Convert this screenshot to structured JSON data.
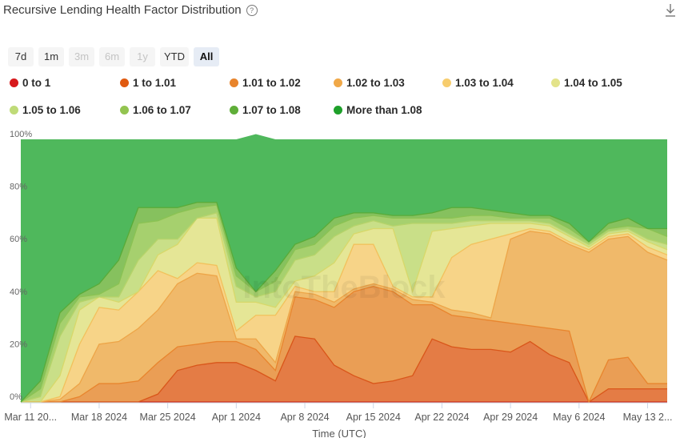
{
  "header": {
    "title": "Recursive Lending Health Factor Distribution",
    "help_icon": "question-circle-icon",
    "download_icon": "download-icon"
  },
  "ranges": [
    {
      "label": "7d",
      "state": "enabled"
    },
    {
      "label": "1m",
      "state": "enabled"
    },
    {
      "label": "3m",
      "state": "disabled"
    },
    {
      "label": "6m",
      "state": "disabled"
    },
    {
      "label": "1y",
      "state": "disabled"
    },
    {
      "label": "YTD",
      "state": "enabled"
    },
    {
      "label": "All",
      "state": "active"
    }
  ],
  "watermark": "IntoTheBlock",
  "chart_data": {
    "type": "area",
    "stacked": "percent",
    "title": "Recursive Lending Health Factor Distribution",
    "xlabel": "Time (UTC)",
    "ylabel": "",
    "ylim": [
      0,
      100
    ],
    "yticks": [
      "0%",
      "20%",
      "40%",
      "60%",
      "80%",
      "100%"
    ],
    "xticks": [
      "Mar 11 20...",
      "Mar 18 2024",
      "Mar 25 2024",
      "Apr 1 2024",
      "Apr 8 2024",
      "Apr 15 2024",
      "Apr 22 2024",
      "Apr 29 2024",
      "May 6 2024",
      "May 13 2..."
    ],
    "legend_position": "top",
    "x": [
      "2024-03-10",
      "2024-03-12",
      "2024-03-14",
      "2024-03-16",
      "2024-03-18",
      "2024-03-20",
      "2024-03-22",
      "2024-03-24",
      "2024-03-26",
      "2024-03-28",
      "2024-03-30",
      "2024-04-01",
      "2024-04-03",
      "2024-04-05",
      "2024-04-07",
      "2024-04-09",
      "2024-04-11",
      "2024-04-13",
      "2024-04-15",
      "2024-04-17",
      "2024-04-19",
      "2024-04-21",
      "2024-04-23",
      "2024-04-25",
      "2024-04-27",
      "2024-04-29",
      "2024-05-01",
      "2024-05-03",
      "2024-05-05",
      "2024-05-07",
      "2024-05-09",
      "2024-05-11",
      "2024-05-13",
      "2024-05-15"
    ],
    "series": [
      {
        "name": "0 to 1",
        "color": "#d7191c",
        "values": [
          0,
          0,
          0,
          0,
          0,
          0,
          0,
          0,
          0,
          0,
          0,
          0,
          0,
          0,
          0,
          0,
          0,
          0,
          0,
          0,
          0,
          0,
          0,
          0,
          0,
          0,
          0,
          0,
          0,
          0,
          0,
          0,
          0,
          0
        ]
      },
      {
        "name": "1 to 1.01",
        "color": "#e05a10",
        "values": [
          0,
          0,
          0,
          0,
          0,
          0,
          0,
          3,
          12,
          14,
          15,
          15,
          12,
          8,
          25,
          24,
          14,
          10,
          7,
          8,
          10,
          24,
          21,
          20,
          20,
          19,
          23,
          18,
          15,
          0,
          5,
          5,
          5,
          5
        ]
      },
      {
        "name": "1.01 to 1.02",
        "color": "#e8842c",
        "values": [
          0,
          0,
          0,
          2,
          7,
          7,
          8,
          12,
          9,
          8,
          8,
          8,
          8,
          4,
          15,
          15,
          22,
          32,
          37,
          34,
          27,
          13,
          12,
          12,
          11,
          11,
          6,
          10,
          12,
          0,
          11,
          12,
          2,
          2
        ]
      },
      {
        "name": "1.02 to 1.03",
        "color": "#f0a848",
        "values": [
          0,
          0,
          1,
          5,
          15,
          16,
          20,
          20,
          24,
          27,
          25,
          1,
          4,
          3,
          2,
          2,
          2,
          1,
          1,
          1,
          2,
          1,
          2,
          2,
          1,
          32,
          36,
          36,
          33,
          57,
          46,
          46,
          50,
          47
        ]
      },
      {
        "name": "1.03 to 1.04",
        "color": "#f7cd6e",
        "values": [
          0,
          0,
          1,
          15,
          14,
          12,
          14,
          15,
          2,
          4,
          4,
          3,
          9,
          18,
          2,
          1,
          4,
          17,
          15,
          1,
          1,
          2,
          20,
          26,
          30,
          2,
          1,
          1,
          1,
          1,
          1,
          1,
          2,
          2
        ]
      },
      {
        "name": "1.04 to 1.05",
        "color": "#e3e38a",
        "values": [
          0,
          0,
          8,
          13,
          4,
          3,
          0,
          6,
          13,
          17,
          18,
          11,
          5,
          3,
          2,
          6,
          11,
          4,
          6,
          22,
          2,
          25,
          11,
          7,
          6,
          4,
          2,
          2,
          2,
          1,
          1,
          1,
          2,
          2
        ]
      },
      {
        "name": "1.05 to 1.06",
        "color": "#bfdb78",
        "values": [
          0,
          2,
          15,
          3,
          0,
          2,
          12,
          6,
          2,
          0,
          2,
          6,
          2,
          6,
          8,
          8,
          10,
          3,
          3,
          1,
          26,
          3,
          2,
          2,
          1,
          1,
          1,
          1,
          1,
          1,
          1,
          1,
          1,
          2
        ]
      },
      {
        "name": "1.06 to 1.07",
        "color": "#93c450",
        "values": [
          0,
          3,
          5,
          2,
          1,
          5,
          14,
          7,
          10,
          4,
          3,
          4,
          2,
          4,
          4,
          4,
          4,
          3,
          2,
          3,
          2,
          2,
          2,
          2,
          2,
          1,
          1,
          2,
          2,
          1,
          1,
          1,
          4,
          3
        ]
      },
      {
        "name": "1.07 to 1.08",
        "color": "#5fae38",
        "values": [
          0,
          3,
          4,
          1,
          4,
          9,
          6,
          5,
          2,
          2,
          1,
          3,
          0,
          4,
          2,
          3,
          3,
          2,
          1,
          1,
          1,
          2,
          4,
          3,
          2,
          2,
          1,
          1,
          2,
          0,
          2,
          3,
          0,
          3
        ]
      },
      {
        "name": "More than 1.08",
        "color": "#1ea02a",
        "values": [
          100,
          92,
          66,
          59,
          55,
          46,
          26,
          26,
          26,
          24,
          24,
          49,
          60,
          50,
          40,
          37,
          30,
          28,
          28,
          29,
          29,
          28,
          26,
          26,
          27,
          28,
          29,
          29,
          32,
          39,
          32,
          30,
          34,
          34
        ]
      }
    ]
  }
}
